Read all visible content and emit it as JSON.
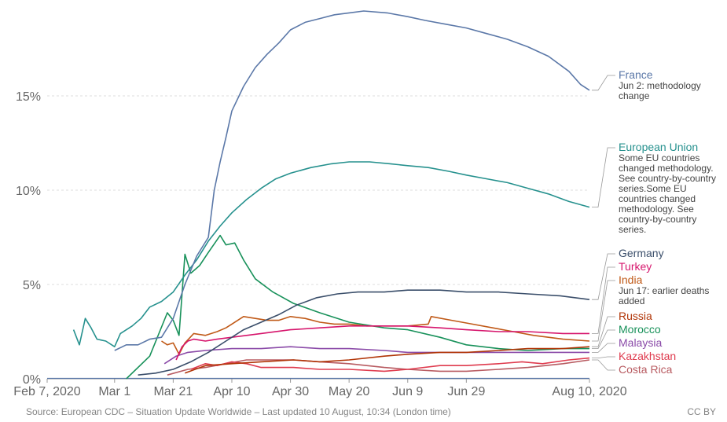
{
  "chart_data": {
    "type": "line",
    "x_ticks": [
      "Feb 7, 2020",
      "Mar 1",
      "Mar 21",
      "Apr 10",
      "Apr 30",
      "May 20",
      "Jun 9",
      "Jun 29",
      "Aug 10, 2020"
    ],
    "y_ticks": [
      "0%",
      "5%",
      "10%",
      "15%"
    ],
    "ylim": [
      0,
      20
    ],
    "grid": "horizontal dashed",
    "series": [
      {
        "name": "France",
        "note": "Jun 2: methodology change",
        "color": "#5b78a8",
        "points": [
          [
            "Mar 1",
            1.5
          ],
          [
            "Mar 5",
            1.8
          ],
          [
            "Mar 9",
            1.8
          ],
          [
            "Mar 13",
            2.1
          ],
          [
            "Mar 17",
            2.2
          ],
          [
            "Mar 21",
            3.2
          ],
          [
            "Mar 25",
            5.0
          ],
          [
            "Mar 29",
            6.5
          ],
          [
            "Apr 2",
            7.5
          ],
          [
            "Apr 4",
            10.0
          ],
          [
            "Apr 6",
            11.5
          ],
          [
            "Apr 8",
            12.8
          ],
          [
            "Apr 10",
            14.2
          ],
          [
            "Apr 14",
            15.5
          ],
          [
            "Apr 18",
            16.5
          ],
          [
            "Apr 22",
            17.2
          ],
          [
            "Apr 26",
            17.8
          ],
          [
            "Apr 30",
            18.5
          ],
          [
            "May 5",
            18.9
          ],
          [
            "May 10",
            19.1
          ],
          [
            "May 15",
            19.3
          ],
          [
            "May 20",
            19.4
          ],
          [
            "May 25",
            19.5
          ],
          [
            "Jun 2",
            19.4
          ],
          [
            "Jun 9",
            19.2
          ],
          [
            "Jun 15",
            19.0
          ],
          [
            "Jun 22",
            18.8
          ],
          [
            "Jun 29",
            18.6
          ],
          [
            "Jul 6",
            18.3
          ],
          [
            "Jul 13",
            18.0
          ],
          [
            "Jul 20",
            17.6
          ],
          [
            "Jul 27",
            17.1
          ],
          [
            "Aug 3",
            16.3
          ],
          [
            "Aug 7",
            15.6
          ],
          [
            "Aug 10",
            15.3
          ]
        ]
      },
      {
        "name": "European Union",
        "note": "Some EU countries changed methodology. See country-by-country series.Some EU countries changed methodology. See country-by-country series.",
        "color": "#26918e",
        "points": [
          [
            "Feb 16",
            2.6
          ],
          [
            "Feb 18",
            1.8
          ],
          [
            "Feb 20",
            3.2
          ],
          [
            "Feb 22",
            2.7
          ],
          [
            "Feb 24",
            2.1
          ],
          [
            "Feb 27",
            2.0
          ],
          [
            "Mar 1",
            1.7
          ],
          [
            "Mar 3",
            2.4
          ],
          [
            "Mar 7",
            2.8
          ],
          [
            "Mar 10",
            3.2
          ],
          [
            "Mar 13",
            3.8
          ],
          [
            "Mar 17",
            4.1
          ],
          [
            "Mar 21",
            4.6
          ],
          [
            "Mar 25",
            5.5
          ],
          [
            "Mar 29",
            6.3
          ],
          [
            "Apr 2",
            7.3
          ],
          [
            "Apr 6",
            8.1
          ],
          [
            "Apr 10",
            8.8
          ],
          [
            "Apr 15",
            9.5
          ],
          [
            "Apr 20",
            10.1
          ],
          [
            "Apr 25",
            10.6
          ],
          [
            "Apr 30",
            10.9
          ],
          [
            "May 7",
            11.2
          ],
          [
            "May 14",
            11.4
          ],
          [
            "May 20",
            11.5
          ],
          [
            "May 27",
            11.5
          ],
          [
            "Jun 3",
            11.4
          ],
          [
            "Jun 9",
            11.3
          ],
          [
            "Jun 16",
            11.2
          ],
          [
            "Jun 23",
            11.0
          ],
          [
            "Jun 29",
            10.8
          ],
          [
            "Jul 6",
            10.6
          ],
          [
            "Jul 13",
            10.4
          ],
          [
            "Jul 20",
            10.1
          ],
          [
            "Jul 27",
            9.8
          ],
          [
            "Aug 3",
            9.4
          ],
          [
            "Aug 10",
            9.1
          ]
        ]
      },
      {
        "name": "Germany",
        "note": "",
        "color": "#3a4e6a",
        "points": [
          [
            "Mar 9",
            0.2
          ],
          [
            "Mar 15",
            0.3
          ],
          [
            "Mar 21",
            0.5
          ],
          [
            "Mar 27",
            0.9
          ],
          [
            "Apr 2",
            1.4
          ],
          [
            "Apr 8",
            2.0
          ],
          [
            "Apr 14",
            2.6
          ],
          [
            "Apr 20",
            3.0
          ],
          [
            "Apr 26",
            3.4
          ],
          [
            "May 2",
            3.9
          ],
          [
            "May 9",
            4.3
          ],
          [
            "May 16",
            4.5
          ],
          [
            "May 23",
            4.6
          ],
          [
            "Jun 1",
            4.6
          ],
          [
            "Jun 9",
            4.7
          ],
          [
            "Jun 20",
            4.7
          ],
          [
            "Jun 29",
            4.6
          ],
          [
            "Jul 10",
            4.6
          ],
          [
            "Jul 20",
            4.5
          ],
          [
            "Jul 31",
            4.4
          ],
          [
            "Aug 10",
            4.2
          ]
        ]
      },
      {
        "name": "Turkey",
        "note": "",
        "color": "#d6156c",
        "points": [
          [
            "Mar 22",
            1.0
          ],
          [
            "Mar 24",
            1.7
          ],
          [
            "Mar 26",
            2.0
          ],
          [
            "Mar 28",
            2.1
          ],
          [
            "Apr 1",
            2.0
          ],
          [
            "Apr 5",
            2.1
          ],
          [
            "Apr 10",
            2.2
          ],
          [
            "Apr 20",
            2.4
          ],
          [
            "Apr 30",
            2.6
          ],
          [
            "May 10",
            2.7
          ],
          [
            "May 20",
            2.8
          ],
          [
            "Jun 1",
            2.8
          ],
          [
            "Jun 9",
            2.8
          ],
          [
            "Jun 20",
            2.7
          ],
          [
            "Jun 29",
            2.6
          ],
          [
            "Jul 10",
            2.5
          ],
          [
            "Jul 20",
            2.5
          ],
          [
            "Aug 1",
            2.4
          ],
          [
            "Aug 10",
            2.4
          ]
        ]
      },
      {
        "name": "India",
        "note": "Jun 17: earlier deaths added",
        "color": "#c05917",
        "points": [
          [
            "Mar 17",
            2.0
          ],
          [
            "Mar 19",
            1.8
          ],
          [
            "Mar 21",
            1.9
          ],
          [
            "Mar 23",
            1.3
          ],
          [
            "Mar 25",
            1.9
          ],
          [
            "Mar 28",
            2.4
          ],
          [
            "Apr 1",
            2.3
          ],
          [
            "Apr 5",
            2.5
          ],
          [
            "Apr 8",
            2.7
          ],
          [
            "Apr 10",
            2.9
          ],
          [
            "Apr 14",
            3.3
          ],
          [
            "Apr 18",
            3.2
          ],
          [
            "Apr 22",
            3.1
          ],
          [
            "Apr 26",
            3.1
          ],
          [
            "Apr 30",
            3.3
          ],
          [
            "May 5",
            3.2
          ],
          [
            "May 10",
            3.0
          ],
          [
            "May 15",
            2.9
          ],
          [
            "May 20",
            2.9
          ],
          [
            "May 26",
            2.8
          ],
          [
            "Jun 2",
            2.8
          ],
          [
            "Jun 9",
            2.8
          ],
          [
            "Jun 16",
            2.9
          ],
          [
            "Jun 17",
            3.3
          ],
          [
            "Jun 24",
            3.1
          ],
          [
            "Jul 1",
            2.9
          ],
          [
            "Jul 8",
            2.7
          ],
          [
            "Jul 15",
            2.5
          ],
          [
            "Jul 22",
            2.3
          ],
          [
            "Aug 1",
            2.1
          ],
          [
            "Aug 10",
            2.0
          ]
        ]
      },
      {
        "name": "Russia",
        "note": "",
        "color": "#b13507",
        "points": [
          [
            "Mar 25",
            0.3
          ],
          [
            "Apr 1",
            0.7
          ],
          [
            "Apr 10",
            0.8
          ],
          [
            "Apr 20",
            0.9
          ],
          [
            "May 1",
            1.0
          ],
          [
            "May 10",
            0.9
          ],
          [
            "May 20",
            1.0
          ],
          [
            "Jun 1",
            1.2
          ],
          [
            "Jun 9",
            1.3
          ],
          [
            "Jun 20",
            1.4
          ],
          [
            "Jun 29",
            1.4
          ],
          [
            "Jul 10",
            1.5
          ],
          [
            "Jul 20",
            1.6
          ],
          [
            "Aug 1",
            1.6
          ],
          [
            "Aug 10",
            1.7
          ]
        ]
      },
      {
        "name": "Morocco",
        "note": "",
        "color": "#18915a",
        "points": [
          [
            "Mar 5",
            0.0
          ],
          [
            "Mar 13",
            1.2
          ],
          [
            "Mar 19",
            3.5
          ],
          [
            "Mar 21",
            3.1
          ],
          [
            "Mar 23",
            2.3
          ],
          [
            "Mar 25",
            6.6
          ],
          [
            "Mar 27",
            5.6
          ],
          [
            "Mar 30",
            6.0
          ],
          [
            "Apr 2",
            6.7
          ],
          [
            "Apr 6",
            7.6
          ],
          [
            "Apr 8",
            7.1
          ],
          [
            "Apr 11",
            7.2
          ],
          [
            "Apr 14",
            6.3
          ],
          [
            "Apr 18",
            5.3
          ],
          [
            "Apr 24",
            4.6
          ],
          [
            "May 1",
            4.0
          ],
          [
            "May 10",
            3.5
          ],
          [
            "May 20",
            3.0
          ],
          [
            "Jun 1",
            2.7
          ],
          [
            "Jun 9",
            2.6
          ],
          [
            "Jun 20",
            2.2
          ],
          [
            "Jun 29",
            1.8
          ],
          [
            "Jul 10",
            1.6
          ],
          [
            "Jul 20",
            1.5
          ],
          [
            "Aug 1",
            1.6
          ],
          [
            "Aug 10",
            1.6
          ]
        ]
      },
      {
        "name": "Malaysia",
        "note": "",
        "color": "#8a4aa8",
        "points": [
          [
            "Mar 18",
            0.8
          ],
          [
            "Mar 22",
            1.2
          ],
          [
            "Mar 26",
            1.4
          ],
          [
            "Apr 1",
            1.5
          ],
          [
            "Apr 10",
            1.6
          ],
          [
            "Apr 20",
            1.6
          ],
          [
            "Apr 30",
            1.7
          ],
          [
            "May 10",
            1.6
          ],
          [
            "May 20",
            1.6
          ],
          [
            "Jun 1",
            1.5
          ],
          [
            "Jun 9",
            1.4
          ],
          [
            "Jun 20",
            1.4
          ],
          [
            "Jun 29",
            1.4
          ],
          [
            "Jul 10",
            1.4
          ],
          [
            "Jul 20",
            1.4
          ],
          [
            "Aug 1",
            1.4
          ],
          [
            "Aug 10",
            1.4
          ]
        ]
      },
      {
        "name": "Kazakhstan",
        "note": "",
        "color": "#df3b4e",
        "points": [
          [
            "Mar 27",
            0.5
          ],
          [
            "Apr 1",
            0.8
          ],
          [
            "Apr 5",
            0.7
          ],
          [
            "Apr 10",
            0.9
          ],
          [
            "Apr 15",
            0.8
          ],
          [
            "Apr 20",
            0.6
          ],
          [
            "May 1",
            0.6
          ],
          [
            "May 10",
            0.5
          ],
          [
            "May 20",
            0.5
          ],
          [
            "Jun 1",
            0.4
          ],
          [
            "Jun 9",
            0.5
          ],
          [
            "Jun 20",
            0.7
          ],
          [
            "Jun 29",
            0.7
          ],
          [
            "Jul 10",
            0.8
          ],
          [
            "Jul 18",
            0.9
          ],
          [
            "Jul 25",
            0.8
          ],
          [
            "Aug 3",
            1.0
          ],
          [
            "Aug 10",
            1.1
          ]
        ]
      },
      {
        "name": "Costa Rica",
        "note": "",
        "color": "#b85b61",
        "points": [
          [
            "Mar 19",
            0.2
          ],
          [
            "Mar 26",
            0.5
          ],
          [
            "Apr 1",
            0.6
          ],
          [
            "Apr 8",
            0.8
          ],
          [
            "Apr 15",
            1.0
          ],
          [
            "Apr 22",
            1.0
          ],
          [
            "May 1",
            1.0
          ],
          [
            "May 10",
            0.9
          ],
          [
            "May 20",
            0.8
          ],
          [
            "Jun 1",
            0.6
          ],
          [
            "Jun 9",
            0.5
          ],
          [
            "Jun 20",
            0.4
          ],
          [
            "Jun 29",
            0.4
          ],
          [
            "Jul 10",
            0.5
          ],
          [
            "Jul 20",
            0.6
          ],
          [
            "Aug 1",
            0.8
          ],
          [
            "Aug 10",
            1.0
          ]
        ]
      }
    ]
  },
  "footer": {
    "source": "Source: European CDC – Situation Update Worldwide – Last updated 10 August, 10:34 (London time)",
    "license": "CC BY"
  }
}
